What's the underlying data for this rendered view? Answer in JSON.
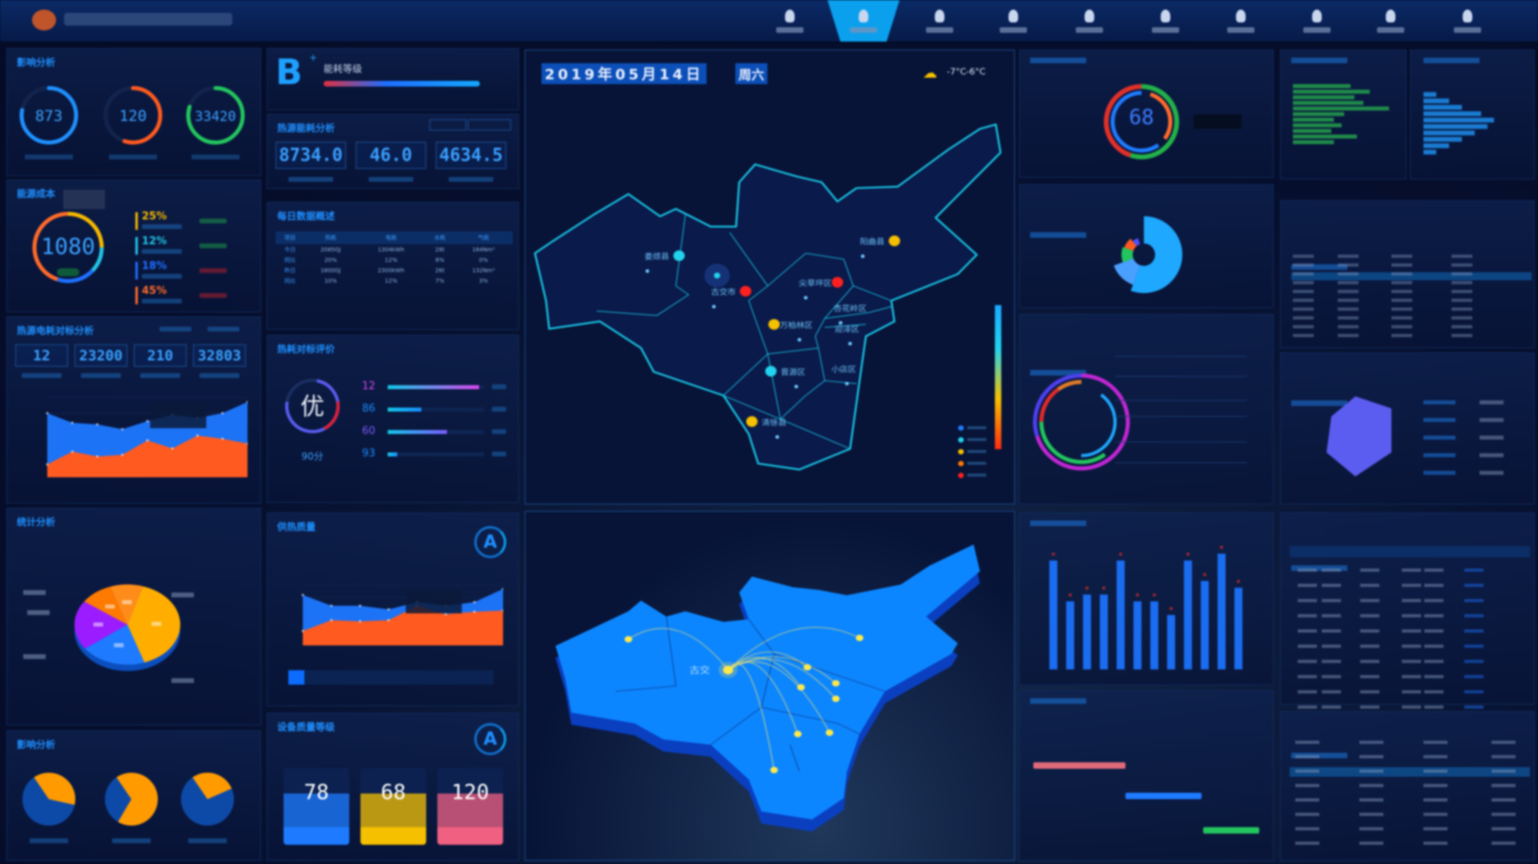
{
  "header": {
    "nav_items": [
      {
        "icon": "person-icon"
      },
      {
        "icon": "drop-icon"
      },
      {
        "icon": "camera-icon"
      },
      {
        "icon": "document-icon"
      },
      {
        "icon": "user-icon"
      },
      {
        "icon": "flame-icon"
      },
      {
        "icon": "building-icon"
      },
      {
        "icon": "chart-icon"
      },
      {
        "icon": "phone-icon"
      },
      {
        "icon": "globe-icon"
      }
    ],
    "active_index": 1
  },
  "impact": {
    "title": "影响分析",
    "gauges": [
      {
        "value": "873",
        "fraction": 0.78,
        "color": "#1e90ff"
      },
      {
        "value": "120",
        "fraction": 0.55,
        "color": "#ff5a1f"
      },
      {
        "value": "33420",
        "fraction": 0.8,
        "color": "#22c55e"
      }
    ]
  },
  "energy_cost": {
    "title": "能源成本",
    "total": "1080",
    "segments": [
      {
        "fraction": 0.25,
        "color": "#f5b800"
      },
      {
        "fraction": 0.12,
        "color": "#22c3e6"
      },
      {
        "fraction": 0.18,
        "color": "#1e6fff"
      },
      {
        "fraction": 0.45,
        "color": "#ff6a2a"
      }
    ],
    "legend": [
      {
        "pct": "25%",
        "color": "#f5b800",
        "trend": "up"
      },
      {
        "pct": "12%",
        "color": "#22c3e6",
        "trend": "up"
      },
      {
        "pct": "18%",
        "color": "#1e6fff",
        "trend": "down"
      },
      {
        "pct": "45%",
        "color": "#ff6a2a",
        "trend": "down"
      }
    ]
  },
  "heat_source": {
    "title": "热源电耗对标分析",
    "stats": [
      "12",
      "23200",
      "210",
      "32803"
    ],
    "series": [
      {
        "color": "#1f78ff",
        "values": [
          4.0,
          3.4,
          3.3,
          3.0,
          3.5,
          3.9,
          3.7,
          4.0,
          4.7
        ]
      },
      {
        "color": "#ff5a1f",
        "values": [
          0.8,
          1.6,
          1.3,
          1.4,
          2.3,
          1.8,
          2.6,
          2.4,
          2.1
        ]
      }
    ],
    "ymax": 5
  },
  "grade": {
    "letter": "B",
    "sup": "+",
    "label": "能耗等级"
  },
  "consumption": {
    "title": "热源能耗分析",
    "stats": [
      "8734.0",
      "46.0",
      "4634.5"
    ]
  },
  "daily": {
    "title": "每日数据概述",
    "columns": [
      "项目",
      "热耗",
      "电耗",
      "水耗",
      "气耗"
    ],
    "rows": [
      [
        "今日",
        "2085GJ",
        "1304kWh",
        "28t",
        "184Nm³"
      ],
      [
        "同比",
        "20%",
        "12%",
        "8%",
        "0%"
      ],
      [
        "昨日",
        "1800GJ",
        "2300kWh",
        "26t",
        "132Nm³"
      ],
      [
        "同比",
        "10%",
        "12%",
        "7%",
        "3%"
      ]
    ]
  },
  "benchmark": {
    "title": "热耗对标评价",
    "grade": "优",
    "score": "90分",
    "bars": [
      {
        "rank": "12",
        "fill": 0.95,
        "color": "#d946ef"
      },
      {
        "rank": "86",
        "fill": 0.35,
        "color": "#1a8cff"
      },
      {
        "rank": "60",
        "fill": 0.62,
        "color": "#7c5cff"
      },
      {
        "rank": "93",
        "fill": 0.1,
        "color": "#1a8cff"
      }
    ]
  },
  "stats_pie": {
    "title": "统计分析",
    "slices": [
      {
        "value": 40,
        "color": "#ffae00"
      },
      {
        "value": 20,
        "color": "#1e7bff"
      },
      {
        "value": 20,
        "color": "#9b1cff"
      },
      {
        "value": 10,
        "color": "#ff7a00"
      },
      {
        "value": 10,
        "color": "#ff8c1a"
      }
    ]
  },
  "impact2": {
    "title": "影响分析",
    "pies": [
      {
        "fraction": 0.38
      },
      {
        "fraction": 0.68
      },
      {
        "fraction": 0.28
      }
    ]
  },
  "quality": {
    "title": "供热质量",
    "badge": "A",
    "series": [
      {
        "color": "#1f78ff",
        "values": [
          4.2,
          3.3,
          3.3,
          3.0,
          3.6,
          3.3,
          3.6,
          4.7
        ]
      },
      {
        "color": "#ff5a1f",
        "values": [
          1.2,
          2.1,
          2.0,
          2.1,
          3.3,
          2.6,
          2.8,
          2.9
        ]
      }
    ],
    "ymax": 5,
    "scroll_fraction": 0.08
  },
  "equipment": {
    "title": "设备质量等级",
    "badge": "A",
    "cards": [
      {
        "value": "78",
        "color": "#1e7bff"
      },
      {
        "value": "68",
        "color": "#f5c000"
      },
      {
        "value": "120",
        "color": "#f06080"
      }
    ]
  },
  "map": {
    "date": "2019年05月14日",
    "weekday": "周六",
    "weather": "-7°C-6°C",
    "regions": [
      {
        "name": "娄烦县",
        "level": "cyan"
      },
      {
        "name": "古交市",
        "level": "red"
      },
      {
        "name": "阳曲县",
        "level": "yellow"
      },
      {
        "name": "尖草坪区",
        "level": "red"
      },
      {
        "name": "杏花岭区",
        "level": "none"
      },
      {
        "name": "万柏林区",
        "level": "yellow"
      },
      {
        "name": "迎泽区",
        "level": "none"
      },
      {
        "name": "晋源区",
        "level": "cyan"
      },
      {
        "name": "小店区",
        "level": "none"
      },
      {
        "name": "清徐县",
        "level": "yellow"
      }
    ],
    "legend": [
      {
        "color": "#1e7bff"
      },
      {
        "color": "#22d3ee"
      },
      {
        "color": "#f5c000"
      },
      {
        "color": "#ff7a00"
      },
      {
        "color": "#ff2020"
      }
    ],
    "colors": {
      "outline": "#19c6e6",
      "fill": "#0a1a4a"
    }
  },
  "flow_map": {
    "center_label": "古交",
    "fill": "#0c86ff",
    "line": "#f5e26a"
  },
  "right": {
    "donut_value": "68",
    "bar_values": [
      8,
      5,
      5.5,
      5.5,
      8,
      5,
      5,
      4,
      8,
      6.5,
      8.5,
      6
    ],
    "gantt": [
      {
        "color": "#e06a7a"
      },
      {
        "color": "#1e7bff"
      },
      {
        "color": "#22c55e"
      }
    ],
    "radar_color": "#5b5cf0"
  }
}
